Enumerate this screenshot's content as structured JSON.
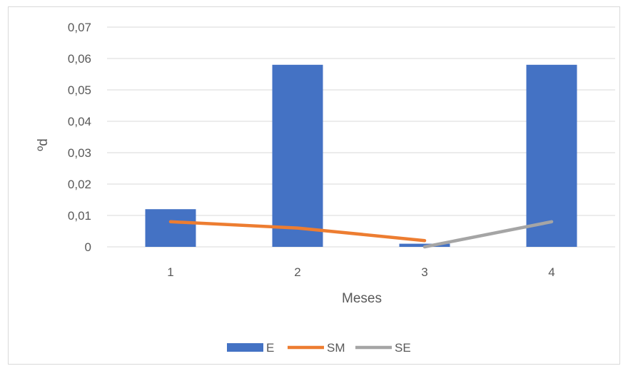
{
  "chart_data": {
    "type": "bar",
    "title": "",
    "xlabel": "Meses",
    "ylabel": "ºd",
    "categories": [
      "1",
      "2",
      "3",
      "4"
    ],
    "ylim": [
      0,
      0.07
    ],
    "yticks": [
      "0",
      "0,01",
      "0,02",
      "0,03",
      "0,04",
      "0,05",
      "0,06",
      "0,07"
    ],
    "ytick_values": [
      0,
      0.01,
      0.02,
      0.03,
      0.04,
      0.05,
      0.06,
      0.07
    ],
    "grid": true,
    "legend_position": "bottom",
    "series": [
      {
        "name": "E",
        "type": "bar",
        "color": "#4472c4",
        "values": [
          0.012,
          0.058,
          0.001,
          0.058
        ]
      },
      {
        "name": "SM",
        "type": "line",
        "color": "#ed7d31",
        "values": [
          0.008,
          0.006,
          0.002,
          null
        ]
      },
      {
        "name": "SE",
        "type": "line",
        "color": "#a5a5a5",
        "values": [
          null,
          null,
          0.0,
          0.008
        ]
      }
    ]
  }
}
